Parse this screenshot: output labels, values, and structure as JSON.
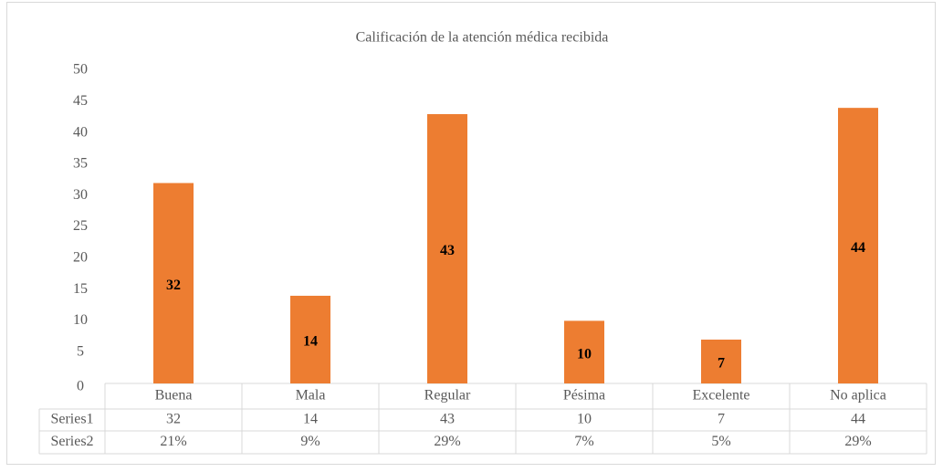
{
  "chart_data": {
    "type": "bar",
    "title": "Calificación  de la atención médica recibida",
    "categories": [
      "Buena",
      "Mala",
      "Regular",
      "Pésima",
      "Excelente",
      "No aplica"
    ],
    "series": [
      {
        "name": "Series1",
        "color": "#ed7d31",
        "values": [
          32,
          14,
          43,
          10,
          7,
          44
        ]
      },
      {
        "name": "Series2",
        "values": [
          21,
          9,
          29,
          7,
          5,
          29
        ],
        "value_labels": [
          "21%",
          "9%",
          "29%",
          "7%",
          "5%",
          "29%"
        ]
      }
    ],
    "ylim": [
      0,
      50
    ],
    "yticks": [
      0,
      5,
      10,
      15,
      20,
      25,
      30,
      35,
      40,
      45,
      50
    ],
    "grid": false
  }
}
